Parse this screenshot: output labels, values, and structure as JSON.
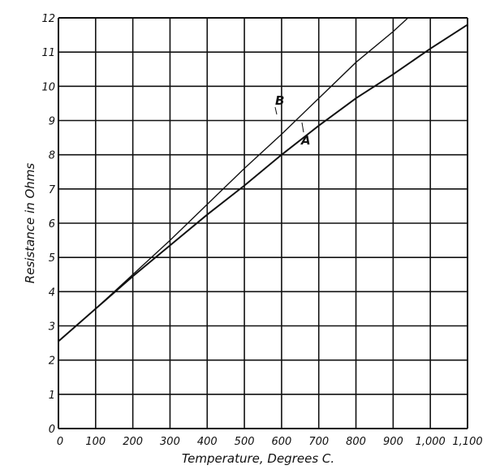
{
  "chart_data": {
    "type": "line",
    "title": "",
    "xlabel": "Temperature, Degrees C.",
    "ylabel": "Resistance in Ohms",
    "xlim": [
      0,
      1100
    ],
    "ylim": [
      0,
      12
    ],
    "grid": true,
    "x_ticks": [
      "0",
      "100",
      "200",
      "300",
      "400",
      "500",
      "600",
      "700",
      "800",
      "900",
      "1,000",
      "1,100"
    ],
    "y_ticks": [
      "0",
      "1",
      "2",
      "3",
      "4",
      "5",
      "6",
      "7",
      "8",
      "9",
      "10",
      "11",
      "12"
    ],
    "series": [
      {
        "name": "A",
        "x": [
          0,
          100,
          200,
          300,
          400,
          500,
          600,
          700,
          800,
          900,
          1000,
          1100
        ],
        "values": [
          2.55,
          3.5,
          4.45,
          5.35,
          6.25,
          7.1,
          8.0,
          8.85,
          9.65,
          10.35,
          11.1,
          11.8
        ]
      },
      {
        "name": "B",
        "x": [
          0,
          100,
          200,
          300,
          400,
          500,
          600,
          700,
          800,
          900,
          940
        ],
        "values": [
          2.55,
          3.5,
          4.5,
          5.5,
          6.55,
          7.6,
          8.6,
          9.65,
          10.7,
          11.6,
          12.0
        ]
      }
    ],
    "annotations": [
      "A",
      "B"
    ]
  }
}
